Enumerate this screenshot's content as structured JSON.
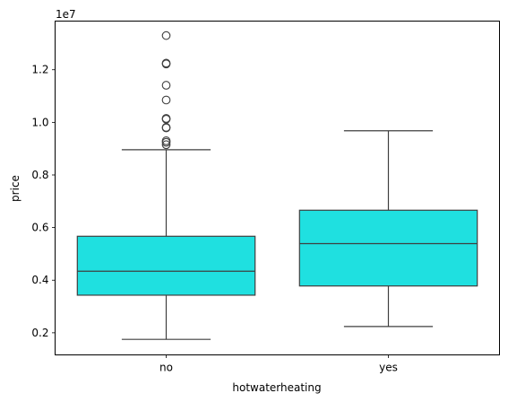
{
  "chart_data": {
    "type": "box",
    "xlabel": "hotwaterheating",
    "ylabel": "price",
    "y_offset_text": "1e7",
    "categories": [
      "no",
      "yes"
    ],
    "y_scale_factor": 10000000,
    "ylim": [
      1.16,
      13.85
    ],
    "yticks": [
      2,
      4,
      6,
      8,
      10,
      12
    ],
    "ytick_labels": [
      "0.2",
      "0.4",
      "0.6",
      "0.8",
      "1.0",
      "1.2"
    ],
    "box_color": "#1fe0e0",
    "line_color": "#3f3f3f",
    "boxes": [
      {
        "category": "no",
        "whisker_low": 1.75,
        "q1": 3.43,
        "median": 4.34,
        "q3": 5.67,
        "whisker_high": 8.96,
        "outliers": [
          13.3,
          12.25,
          12.22,
          11.41,
          10.85,
          10.15,
          10.12,
          9.81,
          9.79,
          9.3,
          9.24,
          9.15
        ]
      },
      {
        "category": "yes",
        "whisker_low": 2.24,
        "q1": 3.78,
        "median": 5.39,
        "q3": 6.66,
        "whisker_high": 9.68,
        "outliers": []
      }
    ]
  }
}
